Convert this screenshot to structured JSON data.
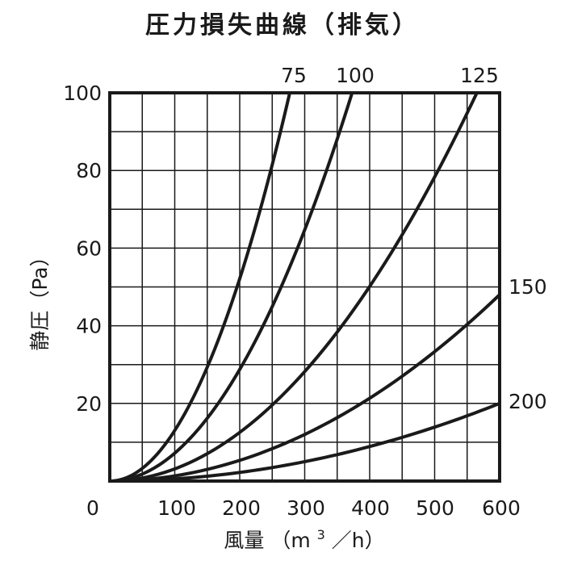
{
  "chart_data": {
    "type": "line",
    "title": "圧力損失曲線（排気）",
    "xlabel_main": "風量",
    "xlabel_unit_pre": "（m",
    "xlabel_unit_sup": "3",
    "xlabel_unit_post": "／h）",
    "ylabel": "静圧（Pa）",
    "xlim": [
      0,
      600
    ],
    "ylim": [
      0,
      100
    ],
    "x_ticks": [
      "0",
      "100",
      "200",
      "300",
      "400",
      "500",
      "600"
    ],
    "y_ticks": [
      "20",
      "40",
      "60",
      "80",
      "100"
    ],
    "grid": true,
    "series": [
      {
        "name": "75",
        "x": [
          0,
          50,
          100,
          150,
          200,
          250,
          277
        ],
        "y": [
          0,
          3.3,
          13,
          29.3,
          52,
          81.3,
          100
        ]
      },
      {
        "name": "100",
        "x": [
          0,
          60,
          120,
          180,
          240,
          300,
          373
        ],
        "y": [
          0,
          2.6,
          10.3,
          23.3,
          41.4,
          64.7,
          100
        ]
      },
      {
        "name": "125",
        "x": [
          0,
          100,
          200,
          300,
          400,
          500,
          565
        ],
        "y": [
          0,
          3.1,
          12.5,
          28.2,
          50.1,
          78.3,
          100
        ]
      },
      {
        "name": "150",
        "x": [
          0,
          100,
          200,
          300,
          400,
          500,
          600
        ],
        "y": [
          0,
          1.3,
          5.3,
          12,
          21.3,
          33.3,
          48
        ]
      },
      {
        "name": "200",
        "x": [
          0,
          100,
          200,
          300,
          400,
          500,
          600
        ],
        "y": [
          0,
          0.6,
          2.2,
          5,
          8.9,
          13.9,
          20
        ]
      }
    ]
  }
}
